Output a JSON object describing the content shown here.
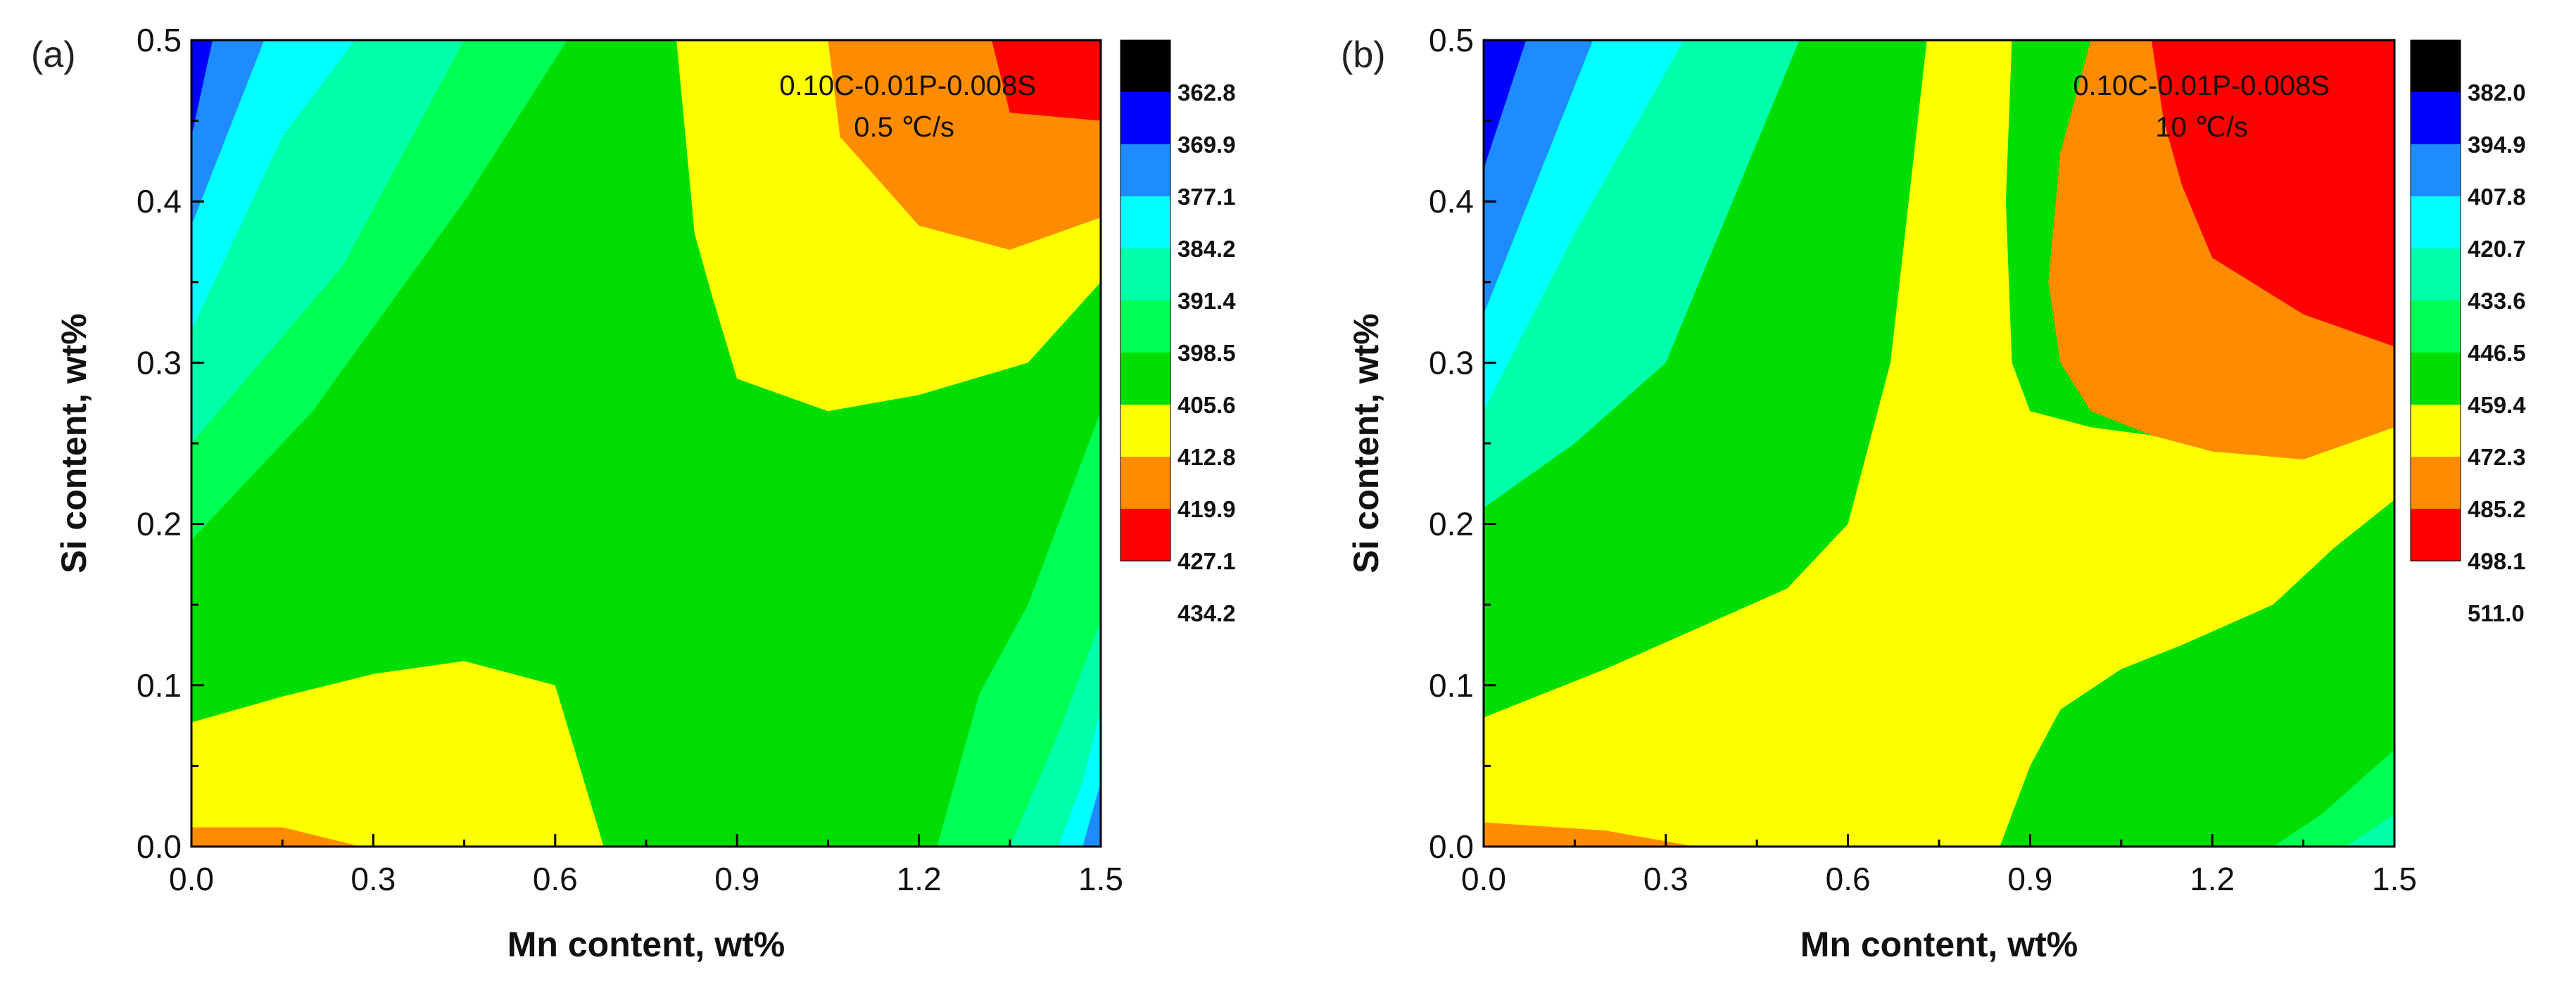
{
  "chart_data": [
    {
      "type": "contour",
      "panel_label": "(a)",
      "xlabel": "Mn content, wt%",
      "ylabel": "Si content, wt%",
      "xlim": [
        0.0,
        1.5
      ],
      "ylim": [
        0.0,
        0.5
      ],
      "xticks": [
        "0.0",
        "0.3",
        "0.6",
        "0.9",
        "1.2",
        "1.5"
      ],
      "yticks": [
        "0.0",
        "0.1",
        "0.2",
        "0.3",
        "0.4",
        "0.5"
      ],
      "annotation": [
        "0.10C-0.01P-0.008S",
        "0.5 ℃/s"
      ],
      "colorbar_levels": [
        "362.8",
        "369.9",
        "377.1",
        "384.2",
        "391.4",
        "398.5",
        "405.6",
        "412.8",
        "419.9",
        "427.1",
        "434.2"
      ],
      "colors": [
        "#000000",
        "#0000ff",
        "#1e8cff",
        "#00ffff",
        "#00ffaa",
        "#00ff55",
        "#00dd00",
        "#ffff00",
        "#ff8c00",
        "#ff0000"
      ],
      "regions": [
        {
          "band": 1,
          "points": [
            [
              0,
              0.5
            ],
            [
              0.035,
              0.5
            ],
            [
              0,
              0.44
            ]
          ]
        },
        {
          "band": 2,
          "points": [
            [
              0.035,
              0.5
            ],
            [
              0.12,
              0.5
            ],
            [
              0,
              0.385
            ],
            [
              0,
              0.44
            ]
          ]
        },
        {
          "band": 3,
          "points": [
            [
              0.12,
              0.5
            ],
            [
              0.27,
              0.5
            ],
            [
              0.15,
              0.44
            ],
            [
              0,
              0.32
            ],
            [
              0,
              0.385
            ]
          ]
        },
        {
          "band": 4,
          "points": [
            [
              0.27,
              0.5
            ],
            [
              0.45,
              0.5
            ],
            [
              0.25,
              0.36
            ],
            [
              0,
              0.25
            ],
            [
              0,
              0.32
            ],
            [
              0.15,
              0.44
            ]
          ]
        },
        {
          "band": 5,
          "points": [
            [
              0.45,
              0.5
            ],
            [
              0.62,
              0.5
            ],
            [
              0.45,
              0.4
            ],
            [
              0.2,
              0.27
            ],
            [
              0,
              0.19
            ],
            [
              0,
              0.25
            ],
            [
              0.25,
              0.36
            ]
          ]
        },
        {
          "band": 7,
          "points": [
            [
              0.8,
              0.5
            ],
            [
              1.5,
              0.5
            ],
            [
              1.5,
              0.35
            ],
            [
              1.38,
              0.3
            ],
            [
              1.2,
              0.28
            ],
            [
              1.05,
              0.27
            ],
            [
              0.9,
              0.29
            ],
            [
              0.86,
              0.34
            ],
            [
              0.83,
              0.38
            ]
          ]
        },
        {
          "band": 8,
          "points": [
            [
              1.05,
              0.5
            ],
            [
              1.5,
              0.5
            ],
            [
              1.5,
              0.39
            ],
            [
              1.35,
              0.37
            ],
            [
              1.2,
              0.385
            ],
            [
              1.07,
              0.44
            ]
          ]
        },
        {
          "band": 9,
          "points": [
            [
              1.32,
              0.5
            ],
            [
              1.5,
              0.5
            ],
            [
              1.5,
              0.45
            ],
            [
              1.35,
              0.455
            ]
          ]
        },
        {
          "band": 7,
          "points": [
            [
              0,
              0
            ],
            [
              0.68,
              0
            ],
            [
              0.6,
              0.1
            ],
            [
              0.45,
              0.115
            ],
            [
              0.3,
              0.107
            ],
            [
              0.15,
              0.093
            ],
            [
              0,
              0.077
            ]
          ]
        },
        {
          "band": 8,
          "points": [
            [
              0,
              0
            ],
            [
              0.28,
              0
            ],
            [
              0.15,
              0.012
            ],
            [
              0,
              0.012
            ]
          ]
        },
        {
          "band": 5,
          "points": [
            [
              1.23,
              0
            ],
            [
              1.5,
              0
            ],
            [
              1.5,
              0.27
            ],
            [
              1.38,
              0.15
            ],
            [
              1.3,
              0.095
            ]
          ]
        },
        {
          "band": 4,
          "points": [
            [
              1.35,
              0
            ],
            [
              1.5,
              0
            ],
            [
              1.5,
              0.14
            ],
            [
              1.43,
              0.07
            ]
          ]
        },
        {
          "band": 3,
          "points": [
            [
              1.43,
              0
            ],
            [
              1.5,
              0
            ],
            [
              1.5,
              0.085
            ],
            [
              1.47,
              0.04
            ]
          ]
        },
        {
          "band": 2,
          "points": [
            [
              1.47,
              0
            ],
            [
              1.5,
              0
            ],
            [
              1.5,
              0.04
            ]
          ]
        }
      ]
    },
    {
      "type": "contour",
      "panel_label": "(b)",
      "xlabel": "Mn content, wt%",
      "ylabel": "Si content, wt%",
      "xlim": [
        0.0,
        1.5
      ],
      "ylim": [
        0.0,
        0.5
      ],
      "xticks": [
        "0.0",
        "0.3",
        "0.6",
        "0.9",
        "1.2",
        "1.5"
      ],
      "yticks": [
        "0.0",
        "0.1",
        "0.2",
        "0.3",
        "0.4",
        "0.5"
      ],
      "annotation": [
        "0.10C-0.01P-0.008S",
        "10 ℃/s"
      ],
      "colorbar_levels": [
        "382.0",
        "394.9",
        "407.8",
        "420.7",
        "433.6",
        "446.5",
        "459.4",
        "472.3",
        "485.2",
        "498.1",
        "511.0"
      ],
      "colors": [
        "#000000",
        "#0000ff",
        "#1e8cff",
        "#00ffff",
        "#00ffaa",
        "#00ff55",
        "#00dd00",
        "#ffff00",
        "#ff8c00",
        "#ff0000"
      ],
      "regions": [
        {
          "band": 7,
          "points": [
            [
              0,
              0
            ],
            [
              0,
              0.08
            ],
            [
              0.2,
              0.11
            ],
            [
              0.35,
              0.135
            ],
            [
              0.5,
              0.16
            ],
            [
              0.6,
              0.2
            ],
            [
              0.67,
              0.3
            ],
            [
              0.7,
              0.4
            ],
            [
              0.73,
              0.5
            ],
            [
              0.87,
              0.5
            ],
            [
              0.86,
              0.4
            ],
            [
              0.87,
              0.3
            ],
            [
              0.9,
              0.27
            ],
            [
              1,
              0.26
            ],
            [
              1.1,
              0.255
            ],
            [
              1.2,
              0.245
            ],
            [
              1.35,
              0.24
            ],
            [
              1.5,
              0.26
            ],
            [
              1.5,
              0.215
            ],
            [
              1.4,
              0.185
            ],
            [
              1.3,
              0.15
            ],
            [
              1.15,
              0.125
            ],
            [
              1.05,
              0.11
            ],
            [
              0.95,
              0.085
            ],
            [
              0.9,
              0.05
            ],
            [
              0.85,
              0
            ]
          ]
        },
        {
          "band": 8,
          "points": [
            [
              1.0,
              0.5
            ],
            [
              1.5,
              0.5
            ],
            [
              1.5,
              0.26
            ],
            [
              1.35,
              0.24
            ],
            [
              1.2,
              0.245
            ],
            [
              1.1,
              0.255
            ],
            [
              1.0,
              0.27
            ],
            [
              0.95,
              0.3
            ],
            [
              0.93,
              0.35
            ],
            [
              0.95,
              0.43
            ]
          ]
        },
        {
          "band": 9,
          "points": [
            [
              1.1,
              0.5
            ],
            [
              1.5,
              0.5
            ],
            [
              1.5,
              0.31
            ],
            [
              1.35,
              0.33
            ],
            [
              1.2,
              0.365
            ],
            [
              1.15,
              0.41
            ],
            [
              1.12,
              0.45
            ]
          ]
        },
        {
          "band": 1,
          "points": [
            [
              0,
              0.5
            ],
            [
              0.07,
              0.5
            ],
            [
              0,
              0.42
            ]
          ]
        },
        {
          "band": 2,
          "points": [
            [
              0.07,
              0.5
            ],
            [
              0.18,
              0.5
            ],
            [
              0,
              0.33
            ],
            [
              0,
              0.42
            ]
          ]
        },
        {
          "band": 3,
          "points": [
            [
              0.18,
              0.5
            ],
            [
              0.33,
              0.5
            ],
            [
              0.15,
              0.38
            ],
            [
              0,
              0.27
            ],
            [
              0,
              0.33
            ]
          ]
        },
        {
          "band": 4,
          "points": [
            [
              0.33,
              0.5
            ],
            [
              0.52,
              0.5
            ],
            [
              0.3,
              0.3
            ],
            [
              0.15,
              0.25
            ],
            [
              0,
              0.21
            ],
            [
              0,
              0.27
            ],
            [
              0.15,
              0.38
            ]
          ]
        },
        {
          "band": 8,
          "points": [
            [
              0,
              0
            ],
            [
              0.35,
              0
            ],
            [
              0.2,
              0.01
            ],
            [
              0,
              0.015
            ]
          ]
        },
        {
          "band": 5,
          "points": [
            [
              1.3,
              0
            ],
            [
              1.5,
              0
            ],
            [
              1.5,
              0.06
            ],
            [
              1.38,
              0.02
            ]
          ]
        },
        {
          "band": 4,
          "points": [
            [
              1.42,
              0
            ],
            [
              1.5,
              0
            ],
            [
              1.5,
              0.02
            ]
          ]
        }
      ]
    }
  ]
}
